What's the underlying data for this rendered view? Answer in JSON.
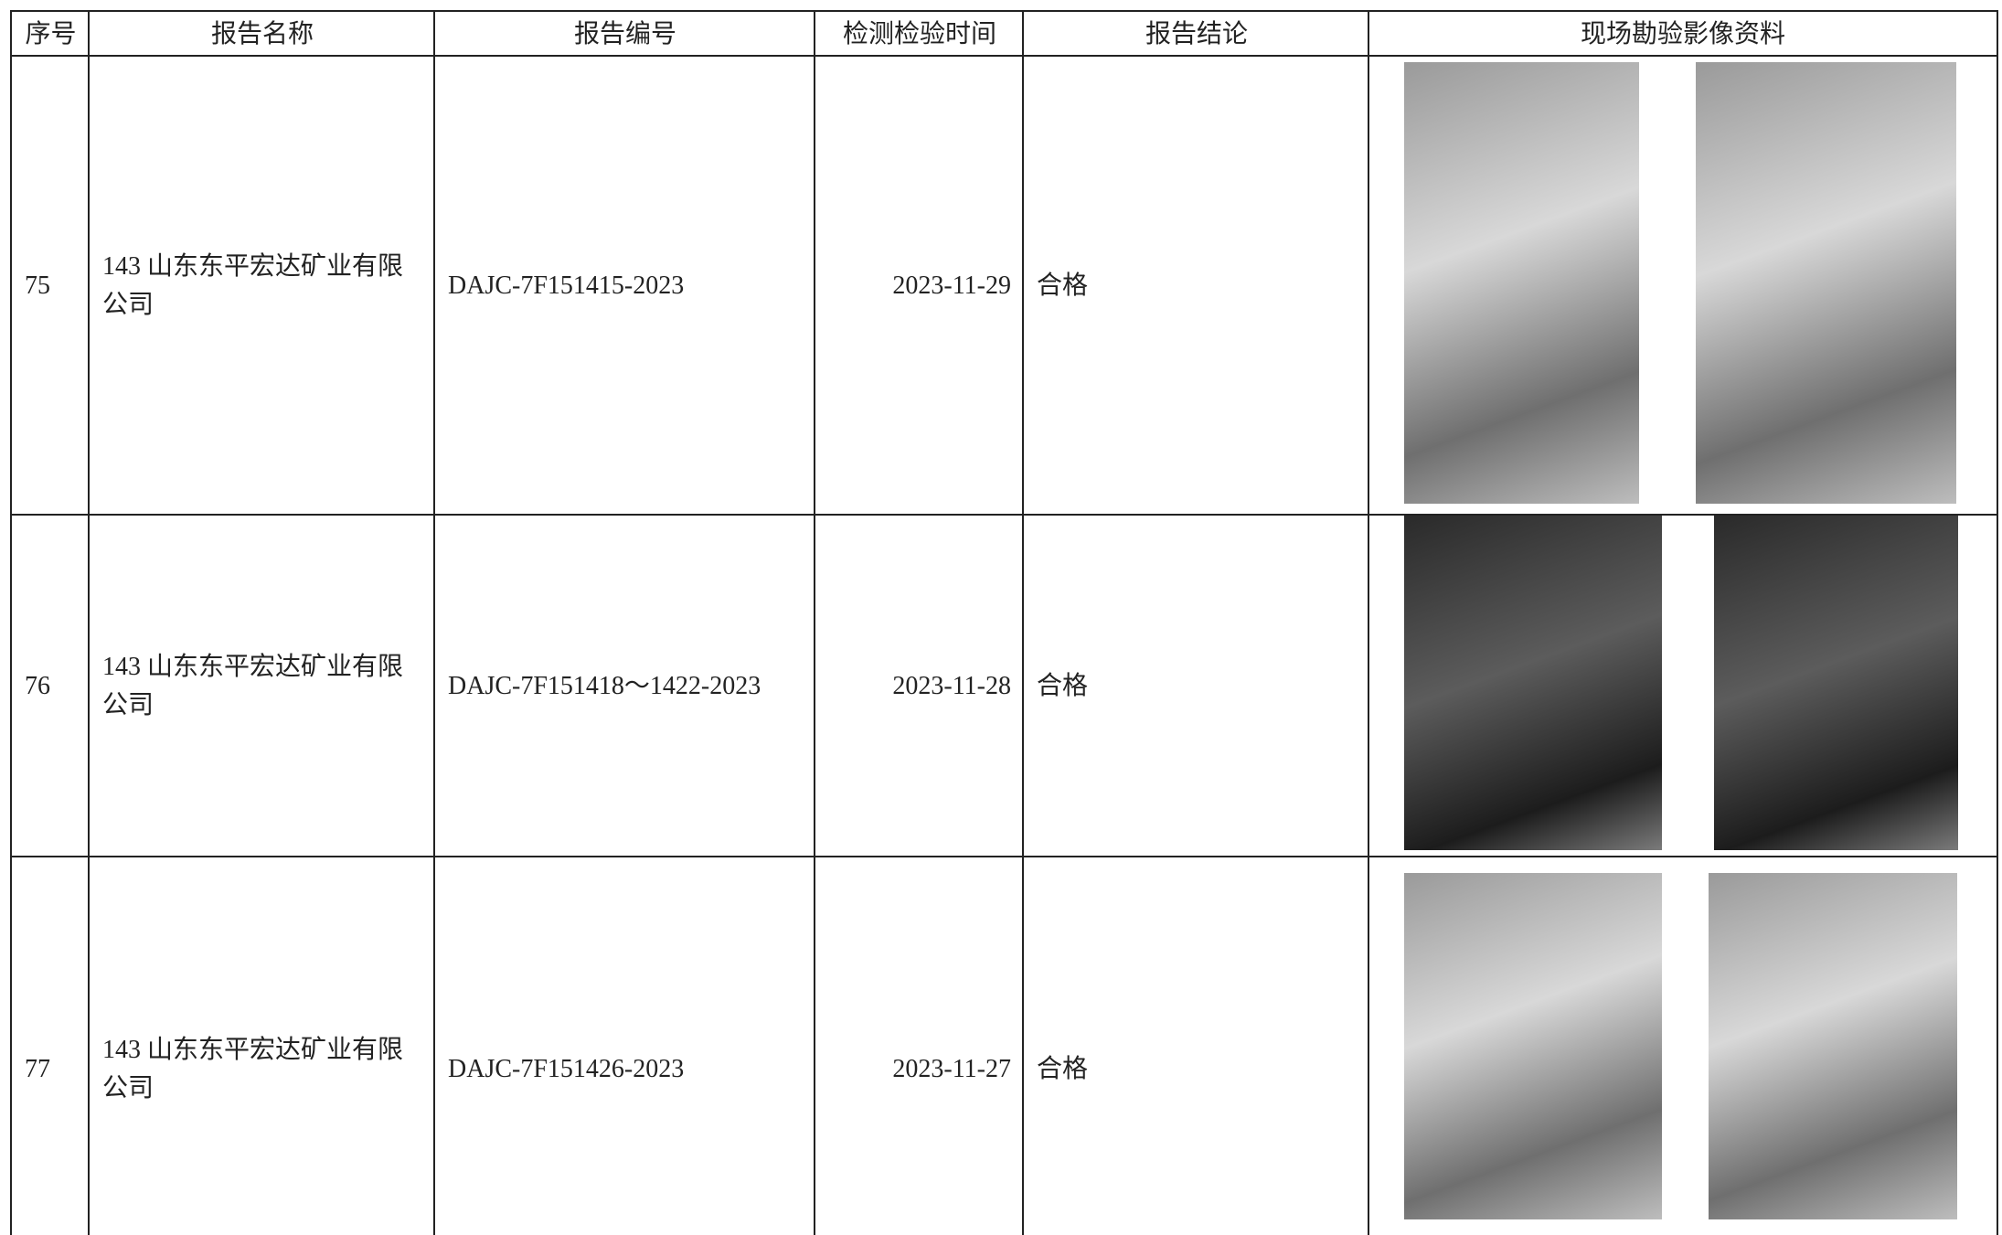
{
  "table": {
    "header": [
      "序号",
      "报告名称",
      "报告编号",
      "检测检验时间",
      "报告结论",
      "现场勘验影像资料"
    ],
    "rows": [
      [
        "75",
        "143 山东东平宏达矿业有限公司",
        "DAJC-7F151415-2023",
        "2023-11-29",
        "合格"
      ],
      [
        "76",
        "143 山东东平宏达矿业有限公司",
        "DAJC-7F151418～1422-2023",
        "2023-11-28",
        "合格"
      ],
      [
        "77",
        "143 山东东平宏达矿业有限公司",
        "DAJC-7F151426-2023",
        "2023-11-27",
        "合格"
      ]
    ]
  }
}
